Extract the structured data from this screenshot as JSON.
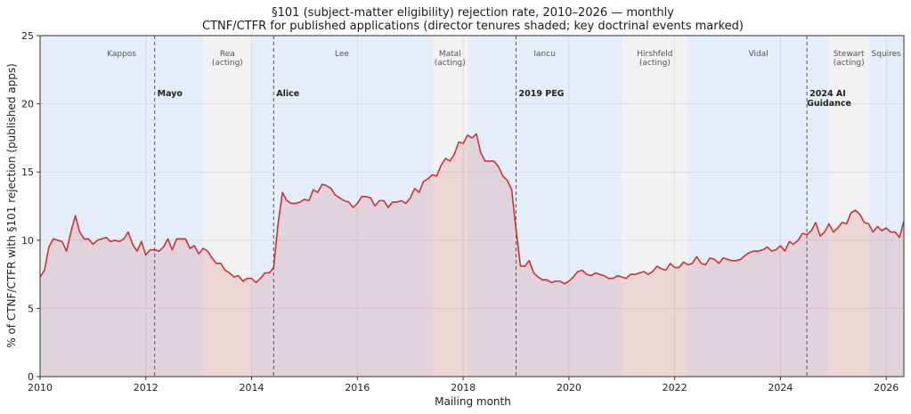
{
  "chart_data": {
    "type": "area",
    "title": "§101 (subject-matter eligibility) rejection rate, 2010–2026 — monthly",
    "subtitle": "CTNF/CTFR for published applications (director tenures shaded; key doctrinal events marked)",
    "xlabel": "Mailing month",
    "ylabel": "% of CTNF/CTFR with §101 rejection (published apps)",
    "xlim": [
      "2010-01",
      "2026-05"
    ],
    "ylim": [
      0,
      25
    ],
    "xticks": [
      "2010",
      "2012",
      "2014",
      "2016",
      "2018",
      "2020",
      "2022",
      "2024",
      "2026"
    ],
    "yticks": [
      0,
      5,
      10,
      15,
      20,
      25
    ],
    "grid": true,
    "line_color": "#cc3333",
    "fill_color": "#cc3333",
    "tenures": [
      {
        "name": "Kappos",
        "note": "",
        "start": "2010-01",
        "end": "2013-02",
        "color": "#dce8f5"
      },
      {
        "name": "Rea",
        "note": "(acting)",
        "start": "2013-02",
        "end": "2014-01",
        "color": "#eeeeee"
      },
      {
        "name": "Lee",
        "note": "",
        "start": "2014-01",
        "end": "2017-06",
        "color": "#dce8f5"
      },
      {
        "name": "Matal",
        "note": "(acting)",
        "start": "2017-06",
        "end": "2018-02",
        "color": "#eeeeee"
      },
      {
        "name": "Iancu",
        "note": "",
        "start": "2018-02",
        "end": "2021-01",
        "color": "#dce8f5"
      },
      {
        "name": "Hirshfeld",
        "note": "(acting)",
        "start": "2021-01",
        "end": "2022-04",
        "color": "#eeeeee"
      },
      {
        "name": "Vidal",
        "note": "",
        "start": "2022-04",
        "end": "2024-12",
        "color": "#dce8f5"
      },
      {
        "name": "Stewart",
        "note": "(acting)",
        "start": "2024-12",
        "end": "2025-09",
        "color": "#eeeeee"
      },
      {
        "name": "Squires",
        "note": "",
        "start": "2025-09",
        "end": "2026-05",
        "color": "#dce8f5"
      }
    ],
    "events": [
      {
        "label": "Mayo",
        "label2": "",
        "date": "2012-03"
      },
      {
        "label": "Alice",
        "label2": "",
        "date": "2014-06"
      },
      {
        "label": "2019 PEG",
        "label2": "",
        "date": "2019-01"
      },
      {
        "label": "2024 AI",
        "label2": "Guidance",
        "date": "2024-07"
      }
    ],
    "series": [
      {
        "start": "2010-01",
        "values": [
          7.3,
          7.8,
          9.5,
          10.1,
          10.0,
          9.9,
          9.2,
          10.6,
          11.8,
          10.6,
          10.1,
          10.1,
          9.7,
          10.0,
          10.1,
          10.2,
          9.9,
          10.0,
          9.9,
          10.1,
          10.6,
          9.7,
          9.2,
          9.9,
          8.9,
          9.3,
          9.3,
          9.2,
          9.5,
          10.1,
          9.3,
          10.1,
          10.1,
          10.1,
          9.4,
          9.6,
          9.0,
          9.4,
          9.2,
          8.7,
          8.3,
          8.3,
          7.8,
          7.6,
          7.3,
          7.4,
          7.0,
          7.2,
          7.2,
          6.9,
          7.2,
          7.6,
          7.6,
          8.0,
          11.2,
          13.5,
          12.9,
          12.7,
          12.7,
          12.8,
          13.0,
          12.9,
          13.7,
          13.5,
          14.1,
          14.0,
          13.8,
          13.3,
          13.1,
          12.9,
          12.8,
          12.4,
          12.7,
          13.2,
          13.2,
          13.1,
          12.5,
          12.9,
          12.9,
          12.4,
          12.8,
          12.8,
          12.9,
          12.7,
          13.1,
          13.8,
          13.5,
          14.3,
          14.5,
          14.8,
          14.7,
          15.5,
          16.0,
          15.8,
          16.3,
          17.2,
          17.1,
          17.7,
          17.5,
          17.8,
          16.4,
          15.8,
          15.8,
          15.8,
          15.4,
          14.7,
          14.4,
          13.7,
          10.8,
          8.1,
          8.1,
          8.5,
          7.6,
          7.3,
          7.1,
          7.1,
          6.9,
          7.0,
          7.0,
          6.8,
          7.0,
          7.3,
          7.7,
          7.8,
          7.5,
          7.4,
          7.6,
          7.5,
          7.4,
          7.2,
          7.2,
          7.4,
          7.3,
          7.2,
          7.5,
          7.5,
          7.6,
          7.7,
          7.5,
          7.7,
          8.1,
          7.9,
          7.8,
          8.3,
          8.0,
          8.0,
          8.4,
          8.2,
          8.3,
          8.8,
          8.3,
          8.2,
          8.7,
          8.6,
          8.3,
          8.7,
          8.6,
          8.5,
          8.5,
          8.6,
          8.9,
          9.1,
          9.2,
          9.2,
          9.3,
          9.5,
          9.2,
          9.3,
          9.6,
          9.2,
          9.9,
          9.7,
          10.0,
          10.5,
          10.4,
          10.7,
          11.3,
          10.3,
          10.6,
          11.2,
          10.6,
          10.9,
          11.3,
          11.2,
          12.0,
          12.2,
          11.9,
          11.3,
          11.2,
          10.6,
          11.0,
          10.7,
          10.9,
          10.6,
          10.6,
          10.2,
          11.4
        ]
      }
    ]
  }
}
